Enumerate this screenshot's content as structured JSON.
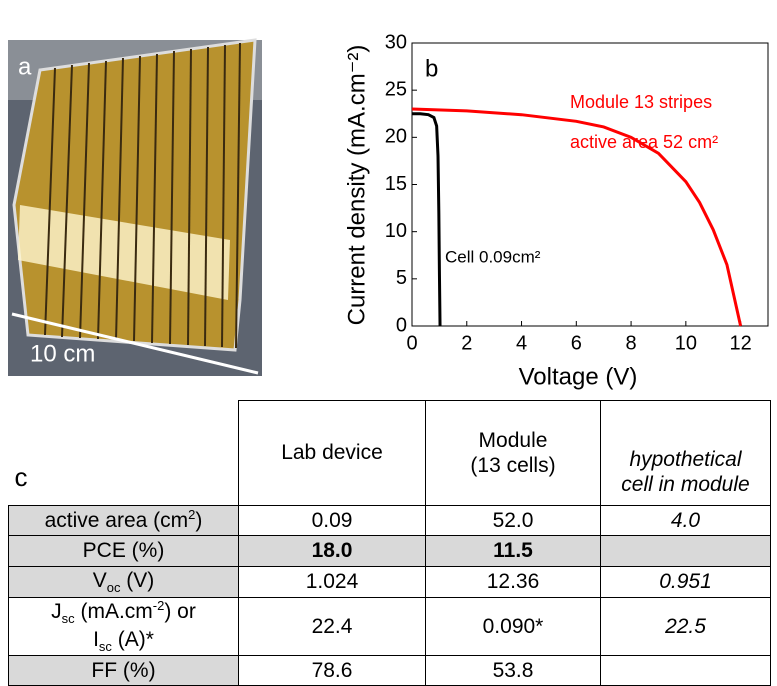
{
  "photo": {
    "label": "a",
    "scale": "10 cm"
  },
  "chart_data": {
    "type": "line",
    "label": "b",
    "xlabel": "Voltage (V)",
    "ylabel": "Current density (mA.cm⁻²)",
    "xlim": [
      0,
      13
    ],
    "xticks": [
      0,
      2,
      4,
      6,
      8,
      10,
      12
    ],
    "ylim": [
      0,
      30
    ],
    "yticks": [
      0,
      5,
      10,
      15,
      20,
      25,
      30
    ],
    "annotations": [
      "active area 52 cm²"
    ],
    "series": [
      {
        "name": "Module 13 stripes",
        "color": "#ff0000",
        "x": [
          0,
          2,
          4,
          6,
          7,
          8,
          9,
          10,
          10.5,
          11,
          11.5,
          12
        ],
        "values": [
          23.0,
          22.8,
          22.4,
          21.7,
          21.1,
          20.0,
          18.3,
          15.3,
          13.1,
          10.2,
          6.5,
          0
        ]
      },
      {
        "name": "Cell 0.09cm²",
        "color": "#000000",
        "x": [
          0,
          0.3,
          0.6,
          0.8,
          0.9,
          0.95,
          0.98,
          1.0,
          1.024
        ],
        "values": [
          22.5,
          22.5,
          22.4,
          22.1,
          21.2,
          18,
          12,
          6,
          0
        ]
      }
    ]
  },
  "table": {
    "label": "c",
    "columns": [
      [
        "Lab device"
      ],
      [
        "Module",
        "(13 cells)"
      ],
      [
        "hypothetical",
        "cell in module"
      ]
    ],
    "rows": [
      {
        "label": [
          "active area (cm",
          "2",
          ")"
        ],
        "cells": [
          "0.09",
          "52.0",
          "4.0"
        ]
      },
      {
        "label": [
          "PCE (%)"
        ],
        "cells": [
          "18.0",
          "11.5"
        ]
      },
      {
        "label": [
          "V",
          "oc",
          " (V)"
        ],
        "cells": [
          "1.024",
          "12.36",
          "0.951"
        ]
      },
      {
        "label": [
          "J",
          "sc",
          " (mA.cm",
          "-2",
          ") or",
          "I",
          "sc",
          " (A)*"
        ],
        "cells": [
          "22.4",
          "0.090*",
          "22.5"
        ]
      },
      {
        "label": [
          "FF (%)"
        ],
        "cells": [
          "78.6",
          "53.8"
        ]
      }
    ]
  }
}
